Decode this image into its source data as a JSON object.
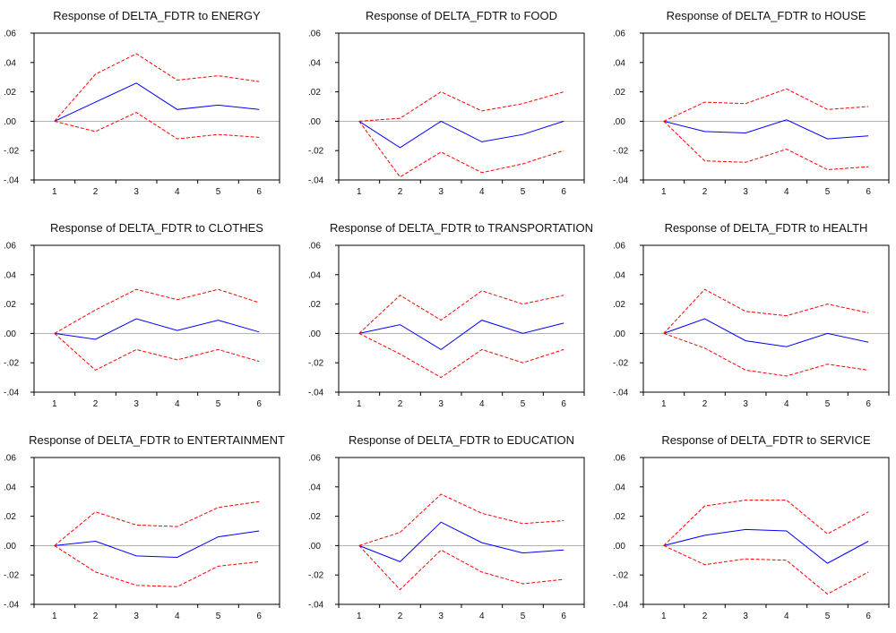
{
  "chart_data": [
    {
      "type": "line",
      "title": "Response of DELTA_FDTR to ENERGY",
      "x": [
        1,
        2,
        3,
        4,
        5,
        6
      ],
      "xlabel": "",
      "ylabel": "",
      "ylim": [
        -0.04,
        0.06
      ],
      "yticks": [
        ".06",
        ".04",
        ".02",
        ".00",
        "-.02",
        "-.04"
      ],
      "series": [
        {
          "role": "response",
          "color": "#0000ff",
          "style": "solid",
          "values": [
            0.0,
            0.013,
            0.026,
            0.008,
            0.011,
            0.008
          ]
        },
        {
          "role": "upper",
          "color": "#ff0000",
          "style": "dashed",
          "values": [
            0.0,
            0.032,
            0.046,
            0.028,
            0.031,
            0.027
          ]
        },
        {
          "role": "lower",
          "color": "#ff0000",
          "style": "dashed",
          "values": [
            0.0,
            -0.007,
            0.006,
            -0.012,
            -0.009,
            -0.011
          ]
        }
      ]
    },
    {
      "type": "line",
      "title": "Response of DELTA_FDTR to FOOD",
      "x": [
        1,
        2,
        3,
        4,
        5,
        6
      ],
      "xlabel": "",
      "ylabel": "",
      "ylim": [
        -0.04,
        0.06
      ],
      "yticks": [
        ".06",
        ".04",
        ".02",
        ".00",
        "-.02",
        "-.04"
      ],
      "series": [
        {
          "role": "response",
          "color": "#0000ff",
          "style": "solid",
          "values": [
            0.0,
            -0.018,
            0.0,
            -0.014,
            -0.009,
            0.0
          ]
        },
        {
          "role": "upper",
          "color": "#ff0000",
          "style": "dashed",
          "values": [
            0.0,
            0.002,
            0.02,
            0.007,
            0.012,
            0.02
          ]
        },
        {
          "role": "lower",
          "color": "#ff0000",
          "style": "dashed",
          "values": [
            0.0,
            -0.038,
            -0.021,
            -0.035,
            -0.029,
            -0.02
          ]
        }
      ]
    },
    {
      "type": "line",
      "title": "Response of DELTA_FDTR to HOUSE",
      "x": [
        1,
        2,
        3,
        4,
        5,
        6
      ],
      "xlabel": "",
      "ylabel": "",
      "ylim": [
        -0.04,
        0.06
      ],
      "yticks": [
        ".06",
        ".04",
        ".02",
        ".00",
        "-.02",
        "-.04"
      ],
      "series": [
        {
          "role": "response",
          "color": "#0000ff",
          "style": "solid",
          "values": [
            0.0,
            -0.007,
            -0.008,
            0.001,
            -0.012,
            -0.01
          ]
        },
        {
          "role": "upper",
          "color": "#ff0000",
          "style": "dashed",
          "values": [
            0.0,
            0.013,
            0.012,
            0.022,
            0.008,
            0.01
          ]
        },
        {
          "role": "lower",
          "color": "#ff0000",
          "style": "dashed",
          "values": [
            0.0,
            -0.027,
            -0.028,
            -0.019,
            -0.033,
            -0.031
          ]
        }
      ]
    },
    {
      "type": "line",
      "title": "Response of DELTA_FDTR to CLOTHES",
      "x": [
        1,
        2,
        3,
        4,
        5,
        6
      ],
      "xlabel": "",
      "ylabel": "",
      "ylim": [
        -0.04,
        0.06
      ],
      "yticks": [
        ".06",
        ".04",
        ".02",
        ".00",
        "-.02",
        "-.04"
      ],
      "series": [
        {
          "role": "response",
          "color": "#0000ff",
          "style": "solid",
          "values": [
            0.0,
            -0.004,
            0.01,
            0.002,
            0.009,
            0.001
          ]
        },
        {
          "role": "upper",
          "color": "#ff0000",
          "style": "dashed",
          "values": [
            0.0,
            0.016,
            0.03,
            0.023,
            0.03,
            0.021
          ]
        },
        {
          "role": "lower",
          "color": "#ff0000",
          "style": "dashed",
          "values": [
            0.0,
            -0.025,
            -0.011,
            -0.018,
            -0.011,
            -0.019
          ]
        }
      ]
    },
    {
      "type": "line",
      "title": "Response of DELTA_FDTR to TRANSPORTATION",
      "x": [
        1,
        2,
        3,
        4,
        5,
        6
      ],
      "xlabel": "",
      "ylabel": "",
      "ylim": [
        -0.04,
        0.06
      ],
      "yticks": [
        ".06",
        ".04",
        ".02",
        ".00",
        "-.02",
        "-.04"
      ],
      "series": [
        {
          "role": "response",
          "color": "#0000ff",
          "style": "solid",
          "values": [
            0.0,
            0.006,
            -0.011,
            0.009,
            0.0,
            0.007
          ]
        },
        {
          "role": "upper",
          "color": "#ff0000",
          "style": "dashed",
          "values": [
            0.0,
            0.026,
            0.009,
            0.029,
            0.02,
            0.026
          ]
        },
        {
          "role": "lower",
          "color": "#ff0000",
          "style": "dashed",
          "values": [
            0.0,
            -0.014,
            -0.03,
            -0.011,
            -0.02,
            -0.011
          ]
        }
      ]
    },
    {
      "type": "line",
      "title": "Response of DELTA_FDTR to HEALTH",
      "x": [
        1,
        2,
        3,
        4,
        5,
        6
      ],
      "xlabel": "",
      "ylabel": "",
      "ylim": [
        -0.04,
        0.06
      ],
      "yticks": [
        ".06",
        ".04",
        ".02",
        ".00",
        "-.02",
        "-.04"
      ],
      "series": [
        {
          "role": "response",
          "color": "#0000ff",
          "style": "solid",
          "values": [
            0.0,
            0.01,
            -0.005,
            -0.009,
            0.0,
            -0.006
          ]
        },
        {
          "role": "upper",
          "color": "#ff0000",
          "style": "dashed",
          "values": [
            0.0,
            0.03,
            0.015,
            0.012,
            0.02,
            0.014
          ]
        },
        {
          "role": "lower",
          "color": "#ff0000",
          "style": "dashed",
          "values": [
            0.0,
            -0.01,
            -0.025,
            -0.029,
            -0.021,
            -0.025
          ]
        }
      ]
    },
    {
      "type": "line",
      "title": "Response of DELTA_FDTR to ENTERTAINMENT",
      "x": [
        1,
        2,
        3,
        4,
        5,
        6
      ],
      "xlabel": "",
      "ylabel": "",
      "ylim": [
        -0.04,
        0.06
      ],
      "yticks": [
        ".06",
        ".04",
        ".02",
        ".00",
        "-.02",
        "-.04"
      ],
      "series": [
        {
          "role": "response",
          "color": "#0000ff",
          "style": "solid",
          "values": [
            0.0,
            0.003,
            -0.007,
            -0.008,
            0.006,
            0.01
          ]
        },
        {
          "role": "upper",
          "color": "#ff0000",
          "style": "dashed",
          "values": [
            0.0,
            0.023,
            0.014,
            0.013,
            0.026,
            0.03
          ]
        },
        {
          "role": "lower",
          "color": "#ff0000",
          "style": "dashed",
          "values": [
            0.0,
            -0.018,
            -0.027,
            -0.028,
            -0.014,
            -0.011
          ]
        }
      ]
    },
    {
      "type": "line",
      "title": "Response of DELTA_FDTR to EDUCATION",
      "x": [
        1,
        2,
        3,
        4,
        5,
        6
      ],
      "xlabel": "",
      "ylabel": "",
      "ylim": [
        -0.04,
        0.06
      ],
      "yticks": [
        ".06",
        ".04",
        ".02",
        ".00",
        "-.02",
        "-.04"
      ],
      "series": [
        {
          "role": "response",
          "color": "#0000ff",
          "style": "solid",
          "values": [
            0.0,
            -0.011,
            0.016,
            0.002,
            -0.005,
            -0.003
          ]
        },
        {
          "role": "upper",
          "color": "#ff0000",
          "style": "dashed",
          "values": [
            0.0,
            0.009,
            0.035,
            0.022,
            0.015,
            0.017
          ]
        },
        {
          "role": "lower",
          "color": "#ff0000",
          "style": "dashed",
          "values": [
            0.0,
            -0.03,
            -0.003,
            -0.018,
            -0.026,
            -0.023
          ]
        }
      ]
    },
    {
      "type": "line",
      "title": "Response of DELTA_FDTR to SERVICE",
      "x": [
        1,
        2,
        3,
        4,
        5,
        6
      ],
      "xlabel": "",
      "ylabel": "",
      "ylim": [
        -0.04,
        0.06
      ],
      "yticks": [
        ".06",
        ".04",
        ".02",
        ".00",
        "-.02",
        "-.04"
      ],
      "series": [
        {
          "role": "response",
          "color": "#0000ff",
          "style": "solid",
          "values": [
            0.0,
            0.007,
            0.011,
            0.01,
            -0.012,
            0.003
          ]
        },
        {
          "role": "upper",
          "color": "#ff0000",
          "style": "dashed",
          "values": [
            0.0,
            0.027,
            0.031,
            0.031,
            0.008,
            0.023
          ]
        },
        {
          "role": "lower",
          "color": "#ff0000",
          "style": "dashed",
          "values": [
            0.0,
            -0.013,
            -0.009,
            -0.01,
            -0.033,
            -0.018
          ]
        }
      ]
    }
  ],
  "colors": {
    "zero_line": "#9a9a9a",
    "axis": "#000000"
  }
}
